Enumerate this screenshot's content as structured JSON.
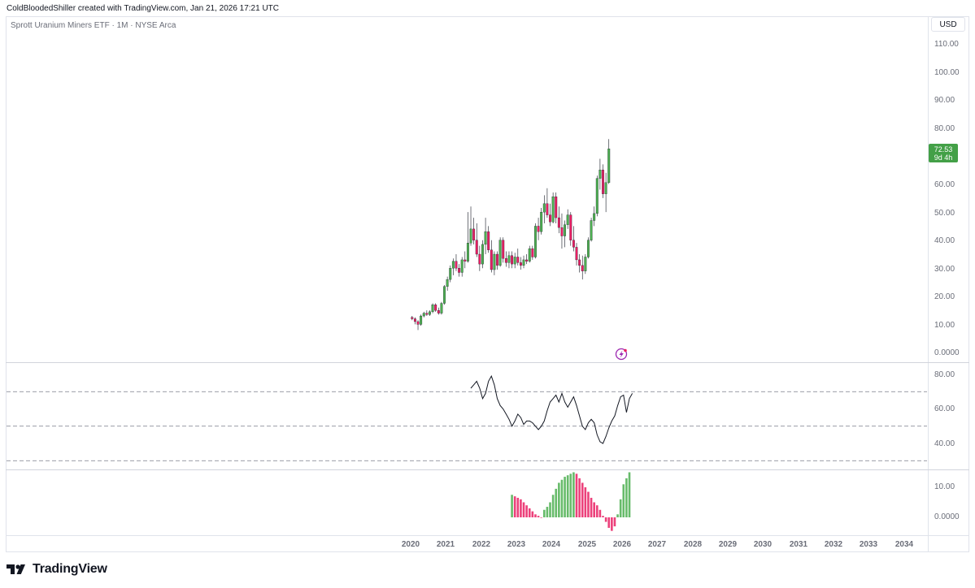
{
  "header": {
    "text": "ColdBloodedShiller created with TradingView.com, Jan 21, 2026 17:21 UTC"
  },
  "symbol": {
    "label": "Sprott Uranium Miners ETF · 1M · NYSE Arca"
  },
  "price_axis": {
    "currency": "USD",
    "ticks": [
      "110.00",
      "100.00",
      "90.00",
      "80.00",
      "60.00",
      "50.00",
      "40.00",
      "30.00",
      "20.00",
      "10.00",
      "0.0000"
    ],
    "last_price": "72.53",
    "countdown": "9d 4h"
  },
  "rsi_axis": {
    "ticks": [
      "80.00",
      "60.00",
      "40.00"
    ]
  },
  "hist_axis": {
    "ticks": [
      "10.00",
      "0.0000"
    ]
  },
  "time_axis": {
    "years": [
      "2020",
      "2021",
      "2022",
      "2023",
      "2024",
      "2025",
      "2026",
      "2027",
      "2028",
      "2029",
      "2030",
      "2031",
      "2032",
      "2033",
      "2034"
    ]
  },
  "footer": {
    "brand": "TradingView",
    "logo_icon": "tradingview-logo-icon"
  },
  "icons": {
    "earnings": "lightning-icon"
  },
  "colors": {
    "up": "#4caf50",
    "down": "#e91e63",
    "price_tag": "#43a047",
    "line": "#131722"
  },
  "chart_data": [
    {
      "type": "candlestick",
      "title": "Sprott Uranium Miners ETF · 1M · NYSE Arca",
      "x_start": "2020-01",
      "interval": "1M",
      "ylim": [
        0,
        115
      ],
      "candles": [
        [
          12.5,
          13.0,
          11.5,
          12.0
        ],
        [
          12.0,
          12.5,
          10.0,
          11.0
        ],
        [
          11.0,
          11.5,
          8.0,
          10.0
        ],
        [
          10.0,
          13.5,
          9.5,
          13.0
        ],
        [
          13.0,
          14.5,
          12.5,
          14.0
        ],
        [
          14.0,
          15.0,
          13.0,
          13.5
        ],
        [
          13.5,
          15.0,
          13.0,
          14.5
        ],
        [
          14.5,
          17.5,
          14.0,
          17.0
        ],
        [
          17.0,
          17.5,
          14.5,
          15.0
        ],
        [
          15.0,
          16.0,
          13.5,
          14.0
        ],
        [
          14.0,
          18.0,
          13.5,
          17.5
        ],
        [
          17.5,
          24.0,
          17.0,
          23.5
        ],
        [
          23.5,
          27.0,
          22.0,
          26.0
        ],
        [
          26.0,
          31.0,
          25.0,
          30.0
        ],
        [
          30.0,
          33.5,
          27.5,
          32.5
        ],
        [
          32.5,
          35.0,
          29.0,
          30.0
        ],
        [
          30.0,
          31.5,
          27.0,
          28.5
        ],
        [
          28.5,
          34.0,
          27.0,
          33.0
        ],
        [
          33.0,
          36.0,
          30.0,
          32.5
        ],
        [
          32.5,
          50.0,
          32.0,
          39.0
        ],
        [
          39.0,
          52.0,
          38.0,
          44.0
        ],
        [
          44.0,
          48.0,
          38.5,
          40.0
        ],
        [
          40.0,
          46.0,
          34.0,
          35.0
        ],
        [
          35.0,
          38.0,
          29.0,
          31.5
        ],
        [
          31.5,
          40.0,
          30.0,
          38.5
        ],
        [
          38.5,
          48.0,
          35.0,
          43.0
        ],
        [
          43.0,
          45.0,
          35.5,
          36.5
        ],
        [
          36.5,
          40.0,
          28.5,
          29.5
        ],
        [
          29.5,
          36.0,
          27.5,
          35.0
        ],
        [
          35.0,
          36.0,
          29.5,
          31.0
        ],
        [
          31.0,
          41.0,
          30.5,
          40.0
        ],
        [
          40.0,
          41.0,
          32.0,
          33.5
        ],
        [
          33.5,
          36.0,
          30.5,
          32.0
        ],
        [
          32.0,
          36.0,
          30.0,
          34.5
        ],
        [
          34.5,
          36.0,
          30.0,
          31.5
        ],
        [
          31.5,
          35.5,
          30.0,
          34.0
        ],
        [
          34.0,
          37.0,
          31.0,
          32.0
        ],
        [
          32.0,
          34.0,
          29.5,
          31.0
        ],
        [
          31.0,
          34.5,
          30.0,
          33.0
        ],
        [
          33.0,
          35.0,
          31.5,
          32.5
        ],
        [
          32.5,
          38.0,
          32.0,
          37.0
        ],
        [
          37.0,
          38.0,
          33.0,
          34.0
        ],
        [
          34.0,
          46.0,
          33.5,
          45.0
        ],
        [
          45.0,
          48.0,
          40.0,
          43.0
        ],
        [
          43.0,
          51.5,
          42.0,
          50.0
        ],
        [
          50.0,
          56.0,
          46.0,
          53.0
        ],
        [
          53.0,
          58.5,
          48.0,
          49.0
        ],
        [
          49.0,
          53.0,
          45.0,
          46.5
        ],
        [
          46.5,
          57.0,
          46.0,
          55.5
        ],
        [
          55.5,
          57.0,
          46.0,
          48.0
        ],
        [
          48.0,
          52.0,
          42.5,
          44.5
        ],
        [
          44.5,
          49.5,
          37.0,
          41.5
        ],
        [
          41.5,
          47.0,
          37.5,
          45.5
        ],
        [
          45.5,
          51.0,
          44.0,
          49.0
        ],
        [
          49.0,
          50.0,
          38.0,
          40.0
        ],
        [
          40.0,
          45.0,
          36.0,
          37.5
        ],
        [
          37.5,
          39.0,
          31.0,
          33.0
        ],
        [
          33.0,
          35.0,
          28.5,
          31.0
        ],
        [
          31.0,
          34.5,
          26.0,
          29.0
        ],
        [
          29.0,
          35.0,
          28.0,
          34.0
        ],
        [
          34.0,
          41.0,
          33.5,
          40.0
        ],
        [
          40.0,
          48.0,
          39.5,
          47.0
        ],
        [
          47.0,
          52.0,
          45.0,
          49.5
        ],
        [
          49.5,
          63.0,
          48.5,
          62.0
        ],
        [
          62.0,
          69.0,
          58.0,
          65.0
        ],
        [
          65.0,
          67.0,
          55.0,
          56.5
        ],
        [
          56.5,
          64.0,
          50.0,
          60.5
        ],
        [
          60.5,
          76.0,
          60.0,
          72.53
        ]
      ]
    },
    {
      "type": "line",
      "title": "",
      "ylim": [
        25,
        88
      ],
      "reference_levels": [
        70,
        50,
        30
      ],
      "x_start": "2021-09",
      "values": [
        72,
        74,
        76,
        72,
        66,
        69,
        76,
        79,
        74,
        66,
        62,
        60,
        57,
        54,
        50,
        53,
        57,
        55,
        51,
        53,
        53,
        52,
        50,
        48,
        50,
        53,
        59,
        64,
        66,
        68,
        64,
        69,
        64,
        61,
        64,
        67,
        62,
        56,
        50,
        48,
        52,
        54,
        52,
        45,
        41,
        40,
        44,
        49,
        53,
        56,
        62,
        67,
        68,
        58,
        66,
        69
      ]
    },
    {
      "type": "bar",
      "title": "",
      "ylim": [
        -6,
        16
      ],
      "x_start": "2022-11",
      "values": [
        7.5,
        7.0,
        6.5,
        6.0,
        5.0,
        4.0,
        3.0,
        2.0,
        1.0,
        0.5,
        0.0,
        2.5,
        3.5,
        5.0,
        7.5,
        9.5,
        11.5,
        12.5,
        13.5,
        14.0,
        14.5,
        15.0,
        14.5,
        13.0,
        11.5,
        10.0,
        8.5,
        6.5,
        5.0,
        4.0,
        2.5,
        0.5,
        -1.5,
        -3.5,
        -4.5,
        -3.0,
        1.0,
        6.0,
        11.0,
        13.0,
        15.0
      ]
    }
  ]
}
